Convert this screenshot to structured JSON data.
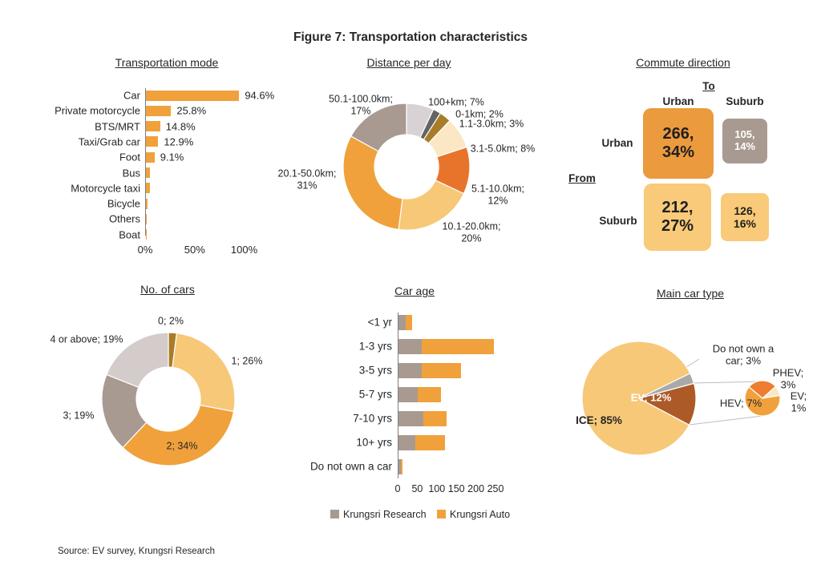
{
  "figure_title": "Figure 7: Transportation characteristics",
  "source_note": "Source: EV survey, Krungsri Research",
  "chart_data": [
    {
      "type": "bar",
      "title": "Transportation mode",
      "orientation": "horizontal",
      "categories": [
        "Car",
        "Private motorcycle",
        "BTS/MRT",
        "Taxi/Grab car",
        "Foot",
        "Bus",
        "Motorcycle taxi",
        "Bicycle",
        "Others",
        "Boat"
      ],
      "values": [
        94.6,
        25.8,
        14.8,
        12.9,
        9.1,
        4.6,
        4.4,
        2.4,
        1.6,
        0.3
      ],
      "data_labels": [
        "94.6%",
        "25.8%",
        "14.8%",
        "12.9%",
        "9.1%",
        "",
        "",
        "",
        "",
        ""
      ],
      "bar_color": "#F0A13C",
      "xlim": [
        0,
        100
      ],
      "x_ticks": [
        "0%",
        "50%",
        "100%"
      ]
    },
    {
      "type": "donut",
      "title": "Distance per day",
      "slices": [
        {
          "label": "100+km; 7%",
          "value": 7,
          "color": "#D8D2D5"
        },
        {
          "label": "0-1km; 2%",
          "value": 2,
          "color": "#646464"
        },
        {
          "label": "1.1-3.0km; 3%",
          "value": 3,
          "color": "#A87C28"
        },
        {
          "label": "3.1-5.0km; 8%",
          "value": 8,
          "color": "#FBE7C3"
        },
        {
          "label": "5.1-10.0km; 12%",
          "value": 12,
          "color": "#E8742C"
        },
        {
          "label": "10.1-20.0km; 20%",
          "value": 20,
          "color": "#F7C878"
        },
        {
          "label": "20.1-50.0km; 31%",
          "value": 31,
          "color": "#F0A13C"
        },
        {
          "label": "50.1-100.0km; 17%",
          "value": 17,
          "color": "#A89A91"
        }
      ]
    },
    {
      "type": "matrix",
      "title": "Commute direction",
      "to_label": "To",
      "from_label": "From",
      "col_headers": [
        "Urban",
        "Suburb"
      ],
      "row_headers": [
        "Urban",
        "Suburb"
      ],
      "cells": [
        {
          "from": "Urban",
          "to": "Urban",
          "count": 266,
          "share": "34%",
          "label": "266, 34%",
          "color": "#EC9A3E",
          "text_color": "#1f1f1f"
        },
        {
          "from": "Urban",
          "to": "Suburb",
          "count": 105,
          "share": "14%",
          "label": "105, 14%",
          "color": "#A99A91",
          "text_color": "#ffffff"
        },
        {
          "from": "Suburb",
          "to": "Urban",
          "count": 212,
          "share": "27%",
          "label": "212, 27%",
          "color": "#F8CA79",
          "text_color": "#1f1f1f"
        },
        {
          "from": "Suburb",
          "to": "Suburb",
          "count": 126,
          "share": "16%",
          "label": "126, 16%",
          "color": "#F8CA79",
          "text_color": "#1f1f1f"
        }
      ]
    },
    {
      "type": "donut",
      "title": "No. of cars",
      "slices": [
        {
          "label": "0; 2%",
          "value": 2,
          "color": "#A87C28"
        },
        {
          "label": "1; 26%",
          "value": 26,
          "color": "#F7C878"
        },
        {
          "label": "2; 34%",
          "value": 34,
          "color": "#F0A13C"
        },
        {
          "label": "3; 19%",
          "value": 19,
          "color": "#A89A91"
        },
        {
          "label": "4 or above; 19%",
          "value": 19,
          "color": "#D3CCCA"
        }
      ]
    },
    {
      "type": "stacked_bar",
      "title": "Car age",
      "orientation": "horizontal",
      "categories": [
        "<1 yr",
        "1-3 yrs",
        "3-5 yrs",
        "5-7 yrs",
        "7-10 yrs",
        "10+ yrs",
        "Do not own a car"
      ],
      "series": [
        {
          "name": "Krungsri Research",
          "color": "#A89A91",
          "values": [
            20,
            60,
            60,
            50,
            65,
            45,
            7
          ]
        },
        {
          "name": "Krungsri Auto",
          "color": "#F0A13C",
          "values": [
            15,
            185,
            100,
            60,
            60,
            75,
            5
          ]
        }
      ],
      "xlim": [
        0,
        250
      ],
      "x_ticks": [
        "0",
        "50",
        "100",
        "150",
        "200",
        "250"
      ]
    },
    {
      "type": "pie_of_pie",
      "title": "Main car type",
      "main_slices": [
        {
          "label": "ICE; 85%",
          "value": 85,
          "color": "#F7C878"
        },
        {
          "label": "Do not own a car; 3%",
          "value": 3,
          "color": "#A9A9A9"
        },
        {
          "label": "EV; 12%",
          "value": 12,
          "color": "#AC5A26"
        }
      ],
      "secondary_slices": [
        {
          "label": "PHEV; 3%",
          "value": 3,
          "color": "#ED7D31"
        },
        {
          "label": "EV; 1%",
          "value": 1,
          "color": "#FBE7C3"
        },
        {
          "label": "HEV; 7%",
          "value": 7,
          "color": "#F0A13C"
        }
      ]
    }
  ]
}
